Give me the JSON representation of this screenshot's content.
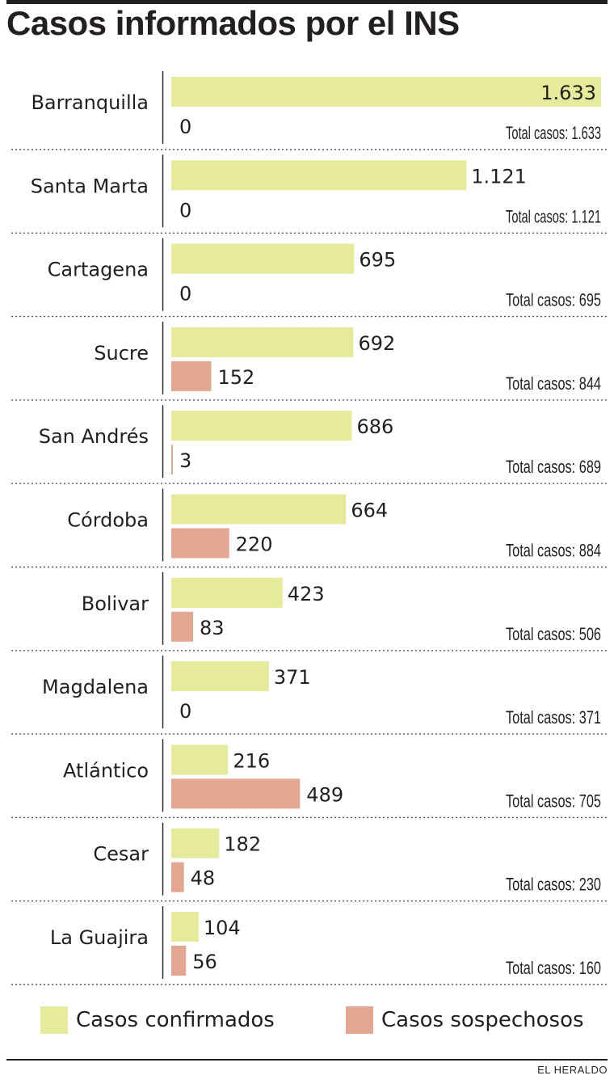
{
  "title": "Casos informados por el INS",
  "credit": "EL HERALDO",
  "colors": {
    "confirmed": "#e5eb9b",
    "suspected": "#e3a791"
  },
  "legend": {
    "confirmed": "Casos confirmados",
    "suspected": "Casos sospechosos"
  },
  "chart_data": {
    "type": "bar",
    "orientation": "horizontal",
    "grouped": true,
    "grid": false,
    "legend_position": "bottom",
    "categories": [
      "Barranquilla",
      "Santa Marta",
      "Cartagena",
      "Sucre",
      "San Andrés",
      "Córdoba",
      "Bolivar",
      "Magdalena",
      "Atlántico",
      "Cesar",
      "La Guajira"
    ],
    "series": [
      {
        "name": "Casos confirmados",
        "key": "confirmed",
        "values": [
          1633,
          1121,
          695,
          692,
          686,
          664,
          423,
          371,
          216,
          182,
          104
        ],
        "labels": [
          "1.633",
          "1.121",
          "695",
          "692",
          "686",
          "664",
          "423",
          "371",
          "216",
          "182",
          "104"
        ]
      },
      {
        "name": "Casos sospechosos",
        "key": "suspected",
        "values": [
          0,
          0,
          0,
          152,
          3,
          220,
          83,
          0,
          489,
          48,
          56
        ],
        "labels": [
          "0",
          "0",
          "0",
          "152",
          "3",
          "220",
          "83",
          "0",
          "489",
          "48",
          "56"
        ]
      }
    ],
    "totals": [
      "Total casos: 1.633",
      "Total casos: 1.121",
      "Total casos: 695",
      "Total casos: 844",
      "Total casos: 689",
      "Total casos: 884",
      "Total casos: 506",
      "Total casos: 371",
      "Total casos: 705",
      "Total casos: 230",
      "Total casos: 160"
    ],
    "xlim": [
      0,
      1633
    ]
  }
}
